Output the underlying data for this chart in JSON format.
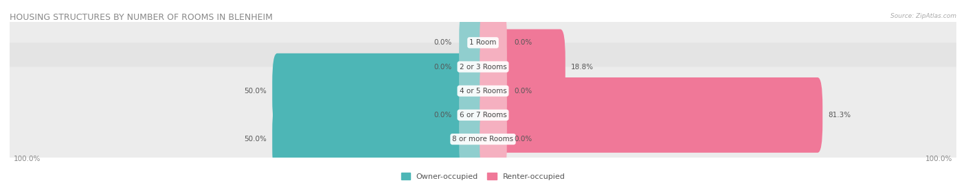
{
  "title": "HOUSING STRUCTURES BY NUMBER OF ROOMS IN BLENHEIM",
  "source": "Source: ZipAtlas.com",
  "categories": [
    "1 Room",
    "2 or 3 Rooms",
    "4 or 5 Rooms",
    "6 or 7 Rooms",
    "8 or more Rooms"
  ],
  "owner_values": [
    0.0,
    0.0,
    50.0,
    0.0,
    50.0
  ],
  "renter_values": [
    0.0,
    18.8,
    0.0,
    81.3,
    0.0
  ],
  "owner_color": "#4db6b6",
  "renter_color": "#f07898",
  "owner_color_light": "#90cece",
  "renter_color_light": "#f5b0c0",
  "figsize": [
    14.06,
    2.7
  ],
  "dpi": 100,
  "label_fontsize": 7.5,
  "title_fontsize": 9,
  "legend_fontsize": 8,
  "axis_label_fontsize": 7.5,
  "left_label": "100.0%",
  "right_label": "100.0%",
  "max_val": 100.0
}
